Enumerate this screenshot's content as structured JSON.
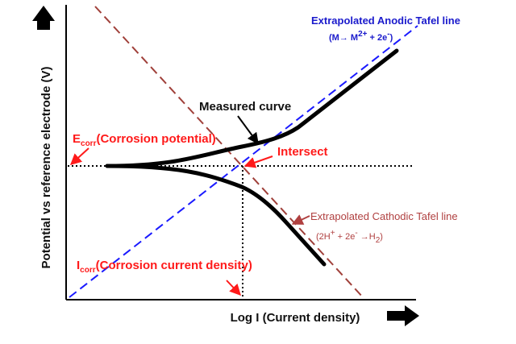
{
  "axes": {
    "ylabel": "Potential vs reference electrode (V)",
    "xlabel": "Log I (Current density)"
  },
  "labels": {
    "anodic_title": "Extrapolated Anodic Tafel line",
    "anodic_eq_1": "(M",
    "anodic_eq_arrow": "→",
    "anodic_eq_2": " M",
    "anodic_eq_sup1": "2+",
    "anodic_eq_3": " + 2e",
    "anodic_eq_sup2": "-",
    "anodic_eq_4": ")",
    "measured": "Measured curve",
    "ecorr_main": "E",
    "ecorr_sub": "corr",
    "ecorr_rest": "(Corrosion potential)",
    "intersect": "Intersect",
    "cathodic_title": "Extrapolated Cathodic Tafel line",
    "cathodic_eq_1": "(2H",
    "cathodic_eq_sup1": "+",
    "cathodic_eq_2": " + 2e",
    "cathodic_eq_sup2": "-",
    "cathodic_eq_arrow": " →",
    "cathodic_eq_3": "H",
    "cathodic_eq_sub": "2",
    "cathodic_eq_4": ")",
    "icorr_main": "I",
    "icorr_sub": "corr",
    "icorr_rest": "(Corrosion current density)"
  },
  "colors": {
    "axis": "#000000",
    "measured": "#000000",
    "anodic": "#1a1aff",
    "cathodic": "#a0403a",
    "red_label": "#ff1a1a",
    "blue_label": "#1a1acc",
    "brown_label": "#b04040"
  },
  "icons": {
    "y_arrow": "up-arrow-icon",
    "x_arrow": "right-arrow-icon"
  }
}
